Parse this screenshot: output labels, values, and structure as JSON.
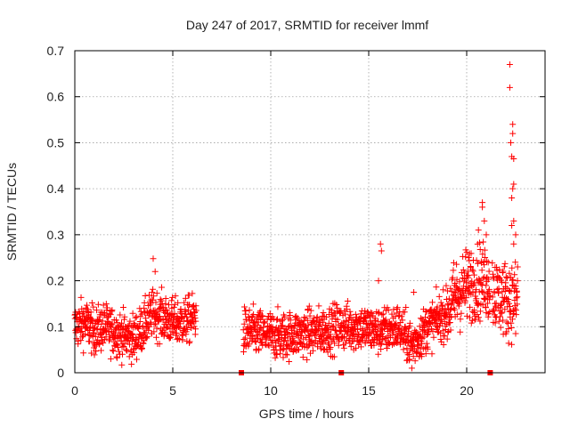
{
  "chart_data": {
    "type": "scatter",
    "title": "Day 247 of 2017, SRMTID for receiver lmmf",
    "xlabel": "GPS time / hours",
    "ylabel": "SRMTID / TECUs",
    "xlim": [
      0,
      24
    ],
    "ylim": [
      0,
      0.7
    ],
    "xticks": [
      0,
      5,
      10,
      15,
      20
    ],
    "yticks": [
      0,
      0.1,
      0.2,
      0.3,
      0.4,
      0.5,
      0.6,
      0.7
    ],
    "xtick_labels": [
      "0",
      "5",
      "10",
      "15",
      "20"
    ],
    "ytick_labels": [
      "0",
      "0.1",
      "0.2",
      "0.3",
      "0.4",
      "0.5",
      "0.6",
      "0.7"
    ],
    "grid": true,
    "marker": "plus",
    "color": "#ff0000",
    "series_profile": [
      {
        "x": 0.0,
        "y": 0.1
      },
      {
        "x": 0.5,
        "y": 0.11
      },
      {
        "x": 1.0,
        "y": 0.09
      },
      {
        "x": 1.5,
        "y": 0.1
      },
      {
        "x": 2.0,
        "y": 0.09
      },
      {
        "x": 2.5,
        "y": 0.08
      },
      {
        "x": 3.0,
        "y": 0.075
      },
      {
        "x": 3.5,
        "y": 0.1
      },
      {
        "x": 4.0,
        "y": 0.13
      },
      {
        "x": 4.5,
        "y": 0.12
      },
      {
        "x": 5.0,
        "y": 0.11
      },
      {
        "x": 5.5,
        "y": 0.11
      },
      {
        "x": 6.1,
        "y": 0.12
      },
      {
        "x": 8.7,
        "y": 0.09
      },
      {
        "x": 9.5,
        "y": 0.085
      },
      {
        "x": 10.5,
        "y": 0.08
      },
      {
        "x": 11.5,
        "y": 0.085
      },
      {
        "x": 12.5,
        "y": 0.09
      },
      {
        "x": 13.5,
        "y": 0.1
      },
      {
        "x": 14.5,
        "y": 0.1
      },
      {
        "x": 15.5,
        "y": 0.09
      },
      {
        "x": 16.5,
        "y": 0.1
      },
      {
        "x": 17.2,
        "y": 0.06
      },
      {
        "x": 18.0,
        "y": 0.1
      },
      {
        "x": 19.0,
        "y": 0.13
      },
      {
        "x": 19.5,
        "y": 0.17
      },
      {
        "x": 20.0,
        "y": 0.19
      },
      {
        "x": 20.5,
        "y": 0.2
      },
      {
        "x": 21.0,
        "y": 0.2
      },
      {
        "x": 21.5,
        "y": 0.17
      },
      {
        "x": 22.0,
        "y": 0.16
      },
      {
        "x": 22.6,
        "y": 0.16
      }
    ],
    "spread": 0.025,
    "gaps": [
      {
        "from": 6.2,
        "to": 8.6
      },
      {
        "from": 21.2,
        "to": 21.3
      }
    ],
    "outliers": [
      {
        "x": 4.0,
        "y": 0.248
      },
      {
        "x": 4.1,
        "y": 0.22
      },
      {
        "x": 15.6,
        "y": 0.28
      },
      {
        "x": 15.65,
        "y": 0.265
      },
      {
        "x": 15.5,
        "y": 0.2
      },
      {
        "x": 17.3,
        "y": 0.175
      },
      {
        "x": 17.2,
        "y": 0.01
      },
      {
        "x": 20.6,
        "y": 0.31
      },
      {
        "x": 20.8,
        "y": 0.36
      },
      {
        "x": 20.8,
        "y": 0.37
      },
      {
        "x": 20.9,
        "y": 0.33
      },
      {
        "x": 21.0,
        "y": 0.3
      },
      {
        "x": 21.1,
        "y": 0.24
      },
      {
        "x": 22.2,
        "y": 0.67
      },
      {
        "x": 22.2,
        "y": 0.62
      },
      {
        "x": 22.35,
        "y": 0.54
      },
      {
        "x": 22.35,
        "y": 0.52
      },
      {
        "x": 22.25,
        "y": 0.5
      },
      {
        "x": 22.3,
        "y": 0.47
      },
      {
        "x": 22.4,
        "y": 0.465
      },
      {
        "x": 22.4,
        "y": 0.41
      },
      {
        "x": 22.35,
        "y": 0.4
      },
      {
        "x": 22.3,
        "y": 0.38
      },
      {
        "x": 22.4,
        "y": 0.33
      },
      {
        "x": 22.3,
        "y": 0.32
      },
      {
        "x": 22.5,
        "y": 0.3
      },
      {
        "x": 22.4,
        "y": 0.28
      },
      {
        "x": 22.6,
        "y": 0.23
      },
      {
        "x": 22.5,
        "y": 0.085
      }
    ],
    "zero_markers": [
      {
        "x": 8.5,
        "y": 0.0
      },
      {
        "x": 13.6,
        "y": 0.0
      },
      {
        "x": 21.2,
        "y": 0.0
      }
    ]
  }
}
